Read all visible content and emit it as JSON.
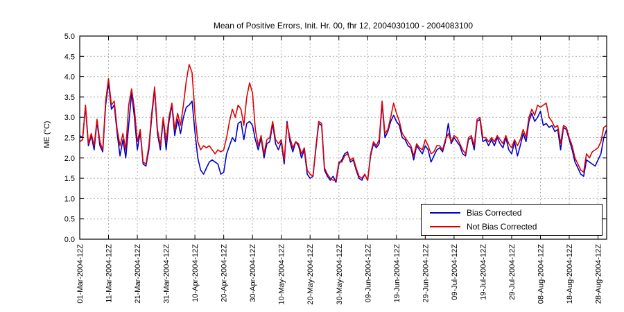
{
  "chart_data": {
    "type": "line",
    "title": "Mean of Positive Errors, Init. Hr. 00, fhr 12, 2004030100 - 2004083100",
    "ylabel": "ME (°C)",
    "xlabel": "",
    "ylim": [
      0.0,
      5.0
    ],
    "ytick_step": 0.5,
    "grid": true,
    "legend_position": "lower right",
    "background": "#ffffff",
    "axis_color": "#000000",
    "grid_color": "#b0b0b0",
    "x_count": 184,
    "x_unit": "daily, 01-Mar-2004 12Z through 31-Aug-2004 12Z",
    "xtick_positions": [
      0,
      10,
      20,
      30,
      40,
      50,
      60,
      70,
      80,
      90,
      100,
      110,
      120,
      130,
      140,
      150,
      160,
      170,
      180
    ],
    "xtick_labels": [
      "01-Mar-2004-12Z",
      "11-Mar-2004-12Z",
      "21-Mar-2004-12Z",
      "31-Mar-2004-12Z",
      "10-Apr-2004-12Z",
      "20-Apr-2004-12Z",
      "30-Apr-2004-12Z",
      "10-May-2004-12Z",
      "20-May-2004-12Z",
      "30-May-2004-12Z",
      "09-Jun-2004-12Z",
      "19-Jun-2004-12Z",
      "29-Jun-2004-12Z",
      "09-Jul-2004-12Z",
      "19-Jul-2004-12Z",
      "29-Jul-2004-12Z",
      "08-Aug-2004-12Z",
      "18-Aug-2004-12Z",
      "28-Aug-2004-12Z"
    ],
    "series": [
      {
        "name": "Bias Corrected",
        "color": "#0000cc",
        "values": [
          2.55,
          2.5,
          3.25,
          2.3,
          2.55,
          2.2,
          2.9,
          2.3,
          2.15,
          3.3,
          3.85,
          3.2,
          3.3,
          2.6,
          2.05,
          2.45,
          2.0,
          2.8,
          3.6,
          3.0,
          2.2,
          2.65,
          1.85,
          1.8,
          2.2,
          3.0,
          3.7,
          2.6,
          2.2,
          2.95,
          2.2,
          2.9,
          3.3,
          2.55,
          2.95,
          2.6,
          3.0,
          3.25,
          3.3,
          3.4,
          2.65,
          2.0,
          1.7,
          1.6,
          1.75,
          1.9,
          1.95,
          1.9,
          1.85,
          1.6,
          1.65,
          2.1,
          2.3,
          2.5,
          2.4,
          2.85,
          2.9,
          2.45,
          2.85,
          2.9,
          2.8,
          2.45,
          2.2,
          2.5,
          2.0,
          2.35,
          2.4,
          2.85,
          2.35,
          2.2,
          2.4,
          1.85,
          2.9,
          2.4,
          2.15,
          2.4,
          2.3,
          2.0,
          2.2,
          1.6,
          1.5,
          1.55,
          2.2,
          2.85,
          2.8,
          1.7,
          1.55,
          1.45,
          1.55,
          1.4,
          1.85,
          1.95,
          2.1,
          2.15,
          1.9,
          1.95,
          1.7,
          1.5,
          1.45,
          1.6,
          1.45,
          2.05,
          2.35,
          2.25,
          2.35,
          3.35,
          2.5,
          2.65,
          2.9,
          3.05,
          2.9,
          2.8,
          2.5,
          2.45,
          2.3,
          2.25,
          1.95,
          2.3,
          2.2,
          2.1,
          2.3,
          2.2,
          1.9,
          2.05,
          2.2,
          2.25,
          2.15,
          2.4,
          2.85,
          2.35,
          2.5,
          2.4,
          2.3,
          2.1,
          2.05,
          2.45,
          2.5,
          2.2,
          2.9,
          2.95,
          2.4,
          2.45,
          2.3,
          2.45,
          2.3,
          2.5,
          2.35,
          2.25,
          2.5,
          2.2,
          2.1,
          2.4,
          2.05,
          2.3,
          2.6,
          2.4,
          2.9,
          3.1,
          2.9,
          3.0,
          3.15,
          2.8,
          2.85,
          2.75,
          2.8,
          2.65,
          2.7,
          2.2,
          2.75,
          2.7,
          2.45,
          2.2,
          1.9,
          1.75,
          1.6,
          1.55,
          1.95,
          1.9,
          1.85,
          1.8,
          1.95,
          2.1,
          2.5,
          2.7
        ]
      },
      {
        "name": "Not Bias Corrected",
        "color": "#dd0000",
        "values": [
          2.4,
          2.45,
          3.3,
          2.35,
          2.6,
          2.3,
          2.95,
          2.4,
          2.2,
          3.4,
          3.95,
          3.3,
          3.4,
          2.7,
          2.3,
          2.6,
          2.2,
          3.3,
          3.7,
          3.2,
          2.4,
          2.7,
          1.9,
          1.85,
          2.3,
          3.1,
          3.75,
          2.7,
          2.3,
          3.0,
          2.4,
          3.0,
          3.35,
          2.7,
          3.1,
          2.8,
          3.3,
          3.9,
          4.3,
          4.1,
          3.1,
          2.4,
          2.2,
          2.3,
          2.25,
          2.3,
          2.2,
          2.1,
          2.2,
          2.15,
          2.2,
          2.5,
          2.9,
          3.2,
          3.0,
          3.3,
          3.2,
          2.8,
          3.5,
          3.85,
          3.6,
          2.7,
          2.3,
          2.55,
          2.1,
          2.45,
          2.5,
          2.9,
          2.45,
          2.35,
          2.45,
          1.95,
          2.85,
          2.5,
          2.25,
          2.4,
          2.35,
          2.1,
          2.25,
          1.7,
          1.6,
          1.55,
          2.25,
          2.9,
          2.85,
          1.75,
          1.6,
          1.5,
          1.45,
          1.45,
          1.9,
          1.9,
          2.05,
          2.1,
          1.95,
          2.0,
          1.75,
          1.55,
          1.5,
          1.6,
          1.45,
          2.1,
          2.4,
          2.3,
          2.45,
          3.4,
          2.6,
          2.7,
          3.0,
          3.35,
          3.1,
          2.9,
          2.6,
          2.5,
          2.4,
          2.3,
          2.05,
          2.35,
          2.25,
          2.2,
          2.45,
          2.3,
          2.1,
          2.15,
          2.3,
          2.3,
          2.2,
          2.45,
          2.6,
          2.4,
          2.55,
          2.5,
          2.35,
          2.2,
          2.1,
          2.5,
          2.55,
          2.3,
          2.95,
          3.0,
          2.5,
          2.5,
          2.4,
          2.5,
          2.4,
          2.55,
          2.45,
          2.35,
          2.55,
          2.35,
          2.25,
          2.45,
          2.3,
          2.45,
          2.7,
          2.5,
          3.0,
          3.2,
          3.05,
          3.3,
          3.25,
          3.3,
          3.35,
          3.0,
          2.9,
          2.75,
          2.8,
          2.35,
          2.8,
          2.75,
          2.5,
          2.3,
          2.0,
          1.85,
          1.7,
          1.65,
          2.1,
          2.0,
          2.15,
          2.2,
          2.25,
          2.4,
          2.75,
          2.8
        ]
      }
    ]
  },
  "legend": {
    "items": [
      "Bias Corrected",
      "Not Bias Corrected"
    ]
  }
}
